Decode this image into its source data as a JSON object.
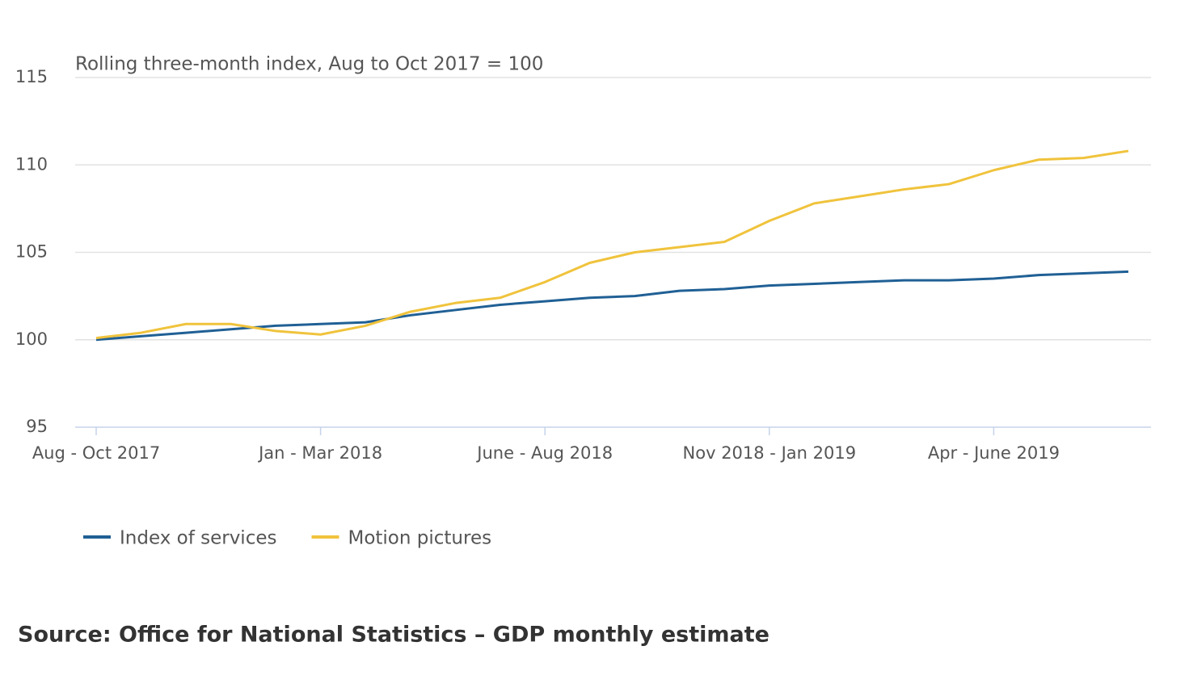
{
  "chart_data": {
    "type": "line",
    "subtitle": "Rolling three-month index, Aug to Oct 2017 = 100",
    "categories": [
      "Aug - Oct 2017",
      null,
      null,
      null,
      null,
      "Jan - Mar 2018",
      null,
      null,
      null,
      null,
      "June - Aug 2018",
      null,
      null,
      null,
      null,
      "Nov 2018 - Jan 2019",
      null,
      null,
      null,
      null,
      "Apr - June 2019",
      null,
      null,
      null
    ],
    "series": [
      {
        "name": "Index of services",
        "color": "#206095",
        "values": [
          100.0,
          100.2,
          100.4,
          100.6,
          100.8,
          100.9,
          101.0,
          101.4,
          101.7,
          102.0,
          102.2,
          102.4,
          102.5,
          102.8,
          102.9,
          103.1,
          103.2,
          103.3,
          103.4,
          103.4,
          103.5,
          103.7,
          103.8,
          103.9
        ]
      },
      {
        "name": "Motion pictures",
        "color": "#f0c33c",
        "values": [
          100.1,
          100.4,
          100.9,
          100.9,
          100.5,
          100.3,
          100.8,
          101.6,
          102.1,
          102.4,
          103.3,
          104.4,
          105.0,
          105.3,
          105.6,
          106.8,
          107.8,
          108.2,
          108.6,
          108.9,
          109.7,
          110.3,
          110.4,
          110.8
        ]
      }
    ],
    "ylim": [
      95,
      115
    ],
    "yticks": [
      95,
      100,
      105,
      110,
      115
    ],
    "grid": true,
    "source": "Source: Office for National Statistics – GDP monthly estimate"
  }
}
